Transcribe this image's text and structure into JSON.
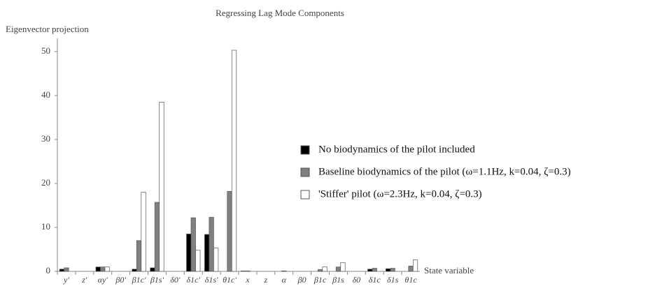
{
  "chart_data": {
    "type": "bar",
    "title": "Regressing Lag Mode Components",
    "y_label": "Eigenvector projection",
    "x_label": "State variable",
    "categories": [
      "y'",
      "z'",
      "αy'",
      "β0'",
      "β1c'",
      "β1s'",
      "δ0'",
      "δ1c'",
      "δ1s'",
      "θ1c'",
      "x",
      "z",
      "α",
      "β0",
      "β1c",
      "β1s",
      "δ0",
      "δ1c",
      "δ1s",
      "θ1c"
    ],
    "series": [
      {
        "name": "No biodynamics of the pilot included",
        "color": "#000000",
        "values": [
          0.5,
          0,
          1,
          0,
          0.5,
          0.8,
          0,
          8.5,
          8.4,
          0,
          0.1,
          0,
          0,
          0,
          0,
          0,
          0,
          0.5,
          0.6,
          0
        ]
      },
      {
        "name": "Baseline biodynamics of the pilot (ω=1.1Hz, k=0.04, ζ=0.3)",
        "color": "#808080",
        "values": [
          0.8,
          0,
          1,
          0,
          7,
          15.7,
          0,
          12.2,
          12.3,
          18.2,
          0.1,
          0,
          0.1,
          0,
          0.4,
          1,
          0,
          0.7,
          0.7,
          1.2
        ]
      },
      {
        "name": "'Stiffer' pilot (ω=2.3Hz, k=0.04, ζ=0.3)",
        "color": "#ffffff",
        "values": [
          0,
          0,
          1,
          0,
          18,
          38.5,
          0,
          4.8,
          5.3,
          50.3,
          0,
          0,
          0,
          0,
          1,
          2,
          0,
          0,
          0,
          2.6
        ]
      }
    ],
    "ylim": [
      0,
      53
    ],
    "yticks": [
      0,
      10,
      20,
      30,
      40,
      50
    ],
    "grid": false
  }
}
